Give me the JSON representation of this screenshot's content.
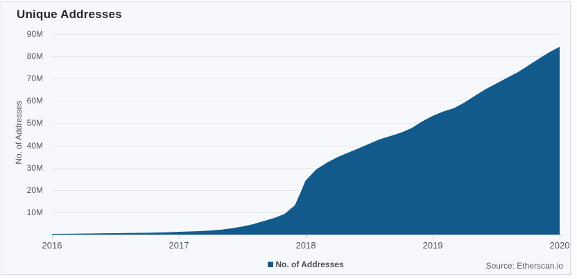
{
  "header": {
    "title": "Unique Addresses"
  },
  "footer": {
    "source": "Source: Etherscan.io"
  },
  "colors": {
    "accent": "#125a8c",
    "card_background": "#f7f8fb",
    "card_border": "#d8dbe2",
    "gridline": "#e5e7eb",
    "axis_line": "#c9cdd3",
    "label_text": "#53565c",
    "title_text": "#26282e"
  },
  "chart_data": {
    "type": "area",
    "title": "Unique Addresses",
    "xlabel": "",
    "ylabel": "No. of Addresses",
    "legend_position": "bottom",
    "grid": true,
    "x_range": [
      2016,
      2020
    ],
    "ylim_millions": [
      0,
      90
    ],
    "x_ticks": [
      "2016",
      "2017",
      "2018",
      "2019",
      "2020"
    ],
    "y_ticks_values_millions": [
      10,
      20,
      30,
      40,
      50,
      60,
      70,
      80,
      90
    ],
    "y_ticks_labels": [
      "10M",
      "20M",
      "30M",
      "40M",
      "50M",
      "60M",
      "70M",
      "80M",
      "90M"
    ],
    "series": [
      {
        "name": "No. of Addresses",
        "color": "#125a8c",
        "x_years": [
          2016.0,
          2016.083,
          2016.167,
          2016.25,
          2016.333,
          2016.417,
          2016.5,
          2016.583,
          2016.667,
          2016.75,
          2016.833,
          2016.917,
          2017.0,
          2017.083,
          2017.167,
          2017.25,
          2017.333,
          2017.417,
          2017.5,
          2017.583,
          2017.667,
          2017.75,
          2017.833,
          2017.917,
          2017.96,
          2018.0,
          2018.083,
          2018.167,
          2018.25,
          2018.333,
          2018.417,
          2018.5,
          2018.583,
          2018.667,
          2018.75,
          2018.833,
          2018.917,
          2019.0,
          2019.083,
          2019.167,
          2019.25,
          2019.333,
          2019.417,
          2019.5,
          2019.583,
          2019.667,
          2019.75,
          2019.833,
          2019.917,
          2020.0
        ],
        "y_millions": [
          0.1,
          0.13,
          0.17,
          0.22,
          0.28,
          0.33,
          0.4,
          0.46,
          0.52,
          0.58,
          0.68,
          0.82,
          1.0,
          1.15,
          1.35,
          1.6,
          2.0,
          2.6,
          3.4,
          4.4,
          5.8,
          7.2,
          9.0,
          13.0,
          18.5,
          24.0,
          29.0,
          32.0,
          34.5,
          36.5,
          38.5,
          40.5,
          42.5,
          44.0,
          45.5,
          47.5,
          50.5,
          53.0,
          55.0,
          56.5,
          59.0,
          62.0,
          65.0,
          67.5,
          70.0,
          72.5,
          75.5,
          78.5,
          81.5,
          84.0
        ]
      }
    ],
    "source": "Source: Etherscan.io"
  }
}
